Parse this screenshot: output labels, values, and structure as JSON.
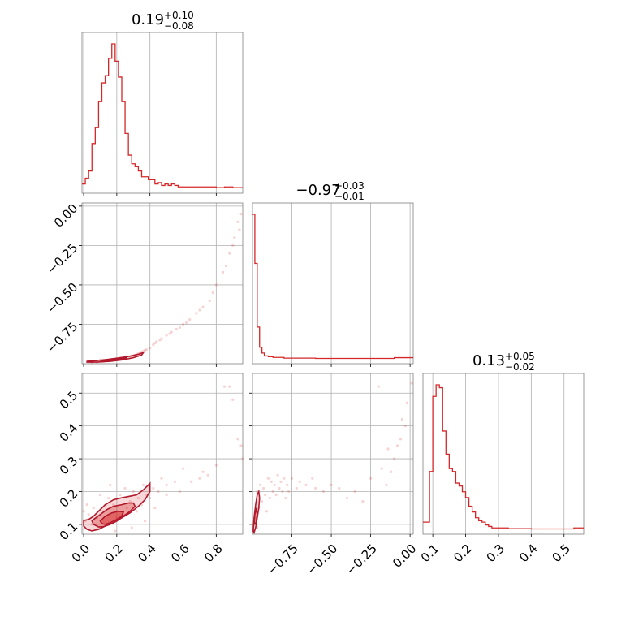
{
  "chart_data": {
    "type": "corner",
    "color": "#d62728",
    "parameters": [
      {
        "range": [
          -0.01,
          0.96
        ],
        "ticks": [
          0.0,
          0.2,
          0.4,
          0.6,
          0.8
        ],
        "tick_labels": [
          "0.0",
          "0.2",
          "0.4",
          "0.6",
          "0.8"
        ],
        "title": {
          "median": "0.19",
          "plus": "+0.10",
          "minus": "−0.08"
        }
      },
      {
        "range": [
          -1.0,
          0.02
        ],
        "ticks": [
          -0.75,
          -0.5,
          -0.25,
          0.0
        ],
        "tick_labels": [
          "−0.75",
          "−0.50",
          "−0.25",
          "0.00"
        ],
        "title": {
          "median": "−0.97",
          "plus": "+0.03",
          "minus": "−0.01"
        }
      },
      {
        "range": [
          0.07,
          0.56
        ],
        "ticks": [
          0.1,
          0.2,
          0.3,
          0.4,
          0.5
        ],
        "tick_labels": [
          "0.1",
          "0.2",
          "0.3",
          "0.4",
          "0.5"
        ],
        "title": {
          "median": "0.13",
          "plus": "+0.05",
          "minus": "−0.02"
        }
      }
    ],
    "histograms": [
      {
        "bins": [
          -0.01,
          0.01,
          0.03,
          0.05,
          0.07,
          0.09,
          0.11,
          0.13,
          0.15,
          0.17,
          0.19,
          0.21,
          0.23,
          0.25,
          0.27,
          0.29,
          0.31,
          0.33,
          0.35,
          0.37,
          0.39,
          0.41,
          0.43,
          0.45,
          0.47,
          0.49,
          0.51,
          0.53,
          0.55,
          0.57,
          0.6,
          0.65,
          0.7,
          0.75,
          0.8,
          0.85,
          0.9,
          0.96
        ],
        "counts": [
          3,
          7,
          12,
          31,
          42,
          60,
          73,
          78,
          90,
          100,
          88,
          77,
          60,
          38,
          23,
          17,
          15,
          12,
          8,
          8,
          6,
          6,
          3,
          4,
          2,
          3,
          2,
          3,
          2,
          1,
          1,
          1,
          1,
          1,
          0.5,
          1,
          0.5
        ]
      },
      {
        "bins": [
          -1.0,
          -0.985,
          -0.97,
          -0.955,
          -0.94,
          -0.925,
          -0.9,
          -0.87,
          -0.8,
          -0.6,
          -0.4,
          -0.2,
          -0.1,
          0.02
        ],
        "counts": [
          100,
          66,
          22,
          8,
          4,
          2,
          1.5,
          1,
          0.5,
          0.3,
          0.3,
          0.3,
          0.8
        ]
      },
      {
        "bins": [
          0.07,
          0.08,
          0.09,
          0.1,
          0.11,
          0.12,
          0.13,
          0.14,
          0.15,
          0.16,
          0.17,
          0.18,
          0.19,
          0.2,
          0.21,
          0.22,
          0.23,
          0.24,
          0.25,
          0.26,
          0.27,
          0.28,
          0.3,
          0.33,
          0.36,
          0.4,
          0.45,
          0.5,
          0.53,
          0.56
        ],
        "counts": [
          5,
          5,
          40,
          92,
          100,
          98,
          68,
          52,
          42,
          40,
          32,
          30,
          26,
          22,
          16,
          12,
          8,
          6,
          5,
          3,
          2,
          1,
          1,
          0.5,
          0.5,
          0.3,
          0.3,
          0.3,
          1
        ]
      }
    ],
    "scatter": {
      "p1_p0": [
        [
          0.05,
          -0.995
        ],
        [
          0.08,
          -0.99
        ],
        [
          0.12,
          -0.985
        ],
        [
          0.15,
          -0.98
        ],
        [
          0.18,
          -0.975
        ],
        [
          0.2,
          -0.97
        ],
        [
          0.23,
          -0.965
        ],
        [
          0.25,
          -0.96
        ],
        [
          0.28,
          -0.955
        ],
        [
          0.3,
          -0.95
        ],
        [
          0.32,
          -0.94
        ],
        [
          0.34,
          -0.93
        ],
        [
          0.36,
          -0.92
        ],
        [
          0.38,
          -0.91
        ],
        [
          0.4,
          -0.9
        ],
        [
          0.42,
          -0.88
        ],
        [
          0.44,
          -0.86
        ],
        [
          0.47,
          -0.84
        ],
        [
          0.5,
          -0.82
        ],
        [
          0.53,
          -0.8
        ],
        [
          0.56,
          -0.78
        ],
        [
          0.6,
          -0.75
        ],
        [
          0.64,
          -0.72
        ],
        [
          0.68,
          -0.68
        ],
        [
          0.72,
          -0.64
        ],
        [
          0.76,
          -0.6
        ],
        [
          0.8,
          -0.5
        ],
        [
          0.84,
          -0.42
        ],
        [
          0.88,
          -0.3
        ],
        [
          0.91,
          -0.2
        ],
        [
          0.93,
          -0.1
        ],
        [
          0.95,
          -0.05
        ],
        [
          0.94,
          -0.15
        ],
        [
          0.9,
          -0.25
        ],
        [
          0.86,
          -0.38
        ],
        [
          0.78,
          -0.55
        ],
        [
          0.7,
          -0.66
        ],
        [
          0.62,
          -0.74
        ],
        [
          0.58,
          -0.77
        ],
        [
          0.52,
          -0.81
        ],
        [
          0.46,
          -0.85
        ],
        [
          0.43,
          -0.87
        ],
        [
          0.37,
          -0.915
        ],
        [
          0.35,
          -0.925
        ],
        [
          0.33,
          -0.935
        ],
        [
          0.31,
          -0.945
        ],
        [
          0.29,
          -0.95
        ],
        [
          0.26,
          -0.955
        ],
        [
          0.22,
          -0.96
        ],
        [
          0.1,
          -0.975
        ]
      ],
      "p2_p0": [
        [
          0.85,
          0.52
        ],
        [
          0.88,
          0.52
        ],
        [
          0.9,
          0.48
        ],
        [
          0.93,
          0.36
        ],
        [
          0.95,
          0.34
        ],
        [
          0.96,
          0.3
        ],
        [
          0.6,
          0.27
        ],
        [
          0.7,
          0.24
        ],
        [
          0.75,
          0.25
        ],
        [
          0.55,
          0.23
        ],
        [
          0.5,
          0.22
        ],
        [
          0.47,
          0.24
        ],
        [
          0.45,
          0.2
        ],
        [
          0.42,
          0.21
        ],
        [
          0.4,
          0.18
        ],
        [
          0.38,
          0.19
        ],
        [
          0.36,
          0.22
        ],
        [
          0.35,
          0.16
        ],
        [
          0.33,
          0.18
        ],
        [
          0.32,
          0.14
        ],
        [
          0.3,
          0.2
        ],
        [
          0.28,
          0.17
        ],
        [
          0.26,
          0.15
        ],
        [
          0.25,
          0.21
        ],
        [
          0.24,
          0.13
        ],
        [
          0.22,
          0.19
        ],
        [
          0.2,
          0.12
        ],
        [
          0.18,
          0.16
        ],
        [
          0.16,
          0.22
        ],
        [
          0.15,
          0.18
        ],
        [
          0.14,
          0.1
        ],
        [
          0.12,
          0.14
        ],
        [
          0.1,
          0.19
        ],
        [
          0.08,
          0.12
        ],
        [
          0.06,
          0.15
        ],
        [
          0.05,
          0.1
        ],
        [
          0.03,
          0.13
        ],
        [
          0.02,
          0.16
        ],
        [
          0.01,
          0.11
        ],
        [
          0.0,
          0.14
        ],
        [
          0.43,
          0.15
        ],
        [
          0.5,
          0.19
        ],
        [
          0.58,
          0.2
        ],
        [
          0.65,
          0.23
        ],
        [
          0.72,
          0.26
        ],
        [
          0.8,
          0.28
        ],
        [
          0.37,
          0.11
        ],
        [
          0.29,
          0.09
        ],
        [
          0.19,
          0.08
        ],
        [
          0.09,
          0.085
        ]
      ],
      "p2_p1": [
        [
          -0.97,
          0.2
        ],
        [
          -0.95,
          0.22
        ],
        [
          -0.93,
          0.21
        ],
        [
          -0.9,
          0.24
        ],
        [
          -0.88,
          0.23
        ],
        [
          -0.86,
          0.22
        ],
        [
          -0.84,
          0.25
        ],
        [
          -0.82,
          0.23
        ],
        [
          -0.8,
          0.24
        ],
        [
          -0.78,
          0.22
        ],
        [
          -0.75,
          0.24
        ],
        [
          -0.7,
          0.23
        ],
        [
          -0.62,
          0.24
        ],
        [
          -0.55,
          0.2
        ],
        [
          -0.4,
          0.18
        ],
        [
          -0.3,
          0.17
        ],
        [
          -0.25,
          0.24
        ],
        [
          -0.15,
          0.22
        ],
        [
          -0.12,
          0.26
        ],
        [
          -0.1,
          0.3
        ],
        [
          -0.08,
          0.34
        ],
        [
          -0.05,
          0.42
        ],
        [
          -0.02,
          0.47
        ],
        [
          0.01,
          0.53
        ],
        [
          -0.2,
          0.52
        ],
        [
          -0.98,
          0.12
        ],
        [
          -0.99,
          0.1
        ],
        [
          -0.96,
          0.15
        ],
        [
          -0.94,
          0.17
        ],
        [
          -0.92,
          0.19
        ],
        [
          -0.91,
          0.14
        ],
        [
          -0.89,
          0.18
        ],
        [
          -0.87,
          0.2
        ],
        [
          -0.85,
          0.19
        ],
        [
          -0.83,
          0.21
        ],
        [
          -0.81,
          0.2
        ],
        [
          -0.79,
          0.18
        ],
        [
          -0.77,
          0.2
        ],
        [
          -0.72,
          0.21
        ],
        [
          -0.66,
          0.22
        ],
        [
          -0.6,
          0.21
        ],
        [
          -0.5,
          0.22
        ],
        [
          -0.45,
          0.21
        ],
        [
          -0.35,
          0.2
        ],
        [
          -0.18,
          0.27
        ],
        [
          -0.14,
          0.33
        ],
        [
          -0.06,
          0.36
        ],
        [
          -0.03,
          0.4
        ],
        [
          -0.97,
          0.09
        ],
        [
          -0.995,
          0.08
        ]
      ]
    },
    "contours": {
      "p2_p0": [
        [
          [
            0.0,
            0.112
          ],
          [
            0.03,
            0.115
          ],
          [
            0.06,
            0.125
          ],
          [
            0.09,
            0.14
          ],
          [
            0.13,
            0.16
          ],
          [
            0.18,
            0.175
          ],
          [
            0.22,
            0.18
          ],
          [
            0.27,
            0.185
          ],
          [
            0.32,
            0.19
          ],
          [
            0.36,
            0.205
          ],
          [
            0.39,
            0.22
          ],
          [
            0.4,
            0.225
          ],
          [
            0.4,
            0.2
          ],
          [
            0.37,
            0.175
          ],
          [
            0.33,
            0.155
          ],
          [
            0.28,
            0.135
          ],
          [
            0.23,
            0.12
          ],
          [
            0.18,
            0.105
          ],
          [
            0.13,
            0.095
          ],
          [
            0.09,
            0.085
          ],
          [
            0.05,
            0.08
          ],
          [
            0.02,
            0.085
          ],
          [
            0.0,
            0.095
          ],
          [
            0.0,
            0.112
          ]
        ],
        [
          [
            0.06,
            0.115
          ],
          [
            0.1,
            0.13
          ],
          [
            0.14,
            0.145
          ],
          [
            0.18,
            0.155
          ],
          [
            0.23,
            0.16
          ],
          [
            0.27,
            0.165
          ],
          [
            0.3,
            0.165
          ],
          [
            0.31,
            0.155
          ],
          [
            0.28,
            0.14
          ],
          [
            0.24,
            0.125
          ],
          [
            0.2,
            0.11
          ],
          [
            0.16,
            0.1
          ],
          [
            0.12,
            0.093
          ],
          [
            0.09,
            0.092
          ],
          [
            0.06,
            0.1
          ],
          [
            0.05,
            0.11
          ],
          [
            0.06,
            0.115
          ]
        ],
        [
          [
            0.1,
            0.11
          ],
          [
            0.13,
            0.125
          ],
          [
            0.17,
            0.135
          ],
          [
            0.21,
            0.14
          ],
          [
            0.24,
            0.138
          ],
          [
            0.23,
            0.125
          ],
          [
            0.2,
            0.115
          ],
          [
            0.16,
            0.105
          ],
          [
            0.13,
            0.1
          ],
          [
            0.11,
            0.102
          ],
          [
            0.1,
            0.11
          ]
        ]
      ],
      "p1_p0": [
        [
          [
            0.02,
            -0.985
          ],
          [
            0.08,
            -0.98
          ],
          [
            0.15,
            -0.972
          ],
          [
            0.22,
            -0.962
          ],
          [
            0.28,
            -0.952
          ],
          [
            0.33,
            -0.94
          ],
          [
            0.36,
            -0.93
          ],
          [
            0.35,
            -0.945
          ],
          [
            0.3,
            -0.962
          ],
          [
            0.24,
            -0.975
          ],
          [
            0.16,
            -0.985
          ],
          [
            0.08,
            -0.99
          ],
          [
            0.02,
            -0.99
          ],
          [
            0.02,
            -0.985
          ]
        ],
        [
          [
            0.1,
            -0.983
          ],
          [
            0.16,
            -0.976
          ],
          [
            0.22,
            -0.968
          ],
          [
            0.26,
            -0.962
          ],
          [
            0.22,
            -0.975
          ],
          [
            0.15,
            -0.985
          ],
          [
            0.1,
            -0.983
          ]
        ]
      ],
      "p2_p1": [
        [
          [
            -0.995,
            0.08
          ],
          [
            -0.99,
            0.12
          ],
          [
            -0.98,
            0.16
          ],
          [
            -0.97,
            0.19
          ],
          [
            -0.96,
            0.2
          ],
          [
            -0.955,
            0.18
          ],
          [
            -0.96,
            0.15
          ],
          [
            -0.97,
            0.12
          ],
          [
            -0.98,
            0.09
          ],
          [
            -0.99,
            0.075
          ],
          [
            -0.995,
            0.08
          ]
        ],
        [
          [
            -0.99,
            0.1
          ],
          [
            -0.985,
            0.13
          ],
          [
            -0.975,
            0.15
          ],
          [
            -0.97,
            0.13
          ],
          [
            -0.978,
            0.105
          ],
          [
            -0.99,
            0.1
          ]
        ]
      ]
    }
  }
}
